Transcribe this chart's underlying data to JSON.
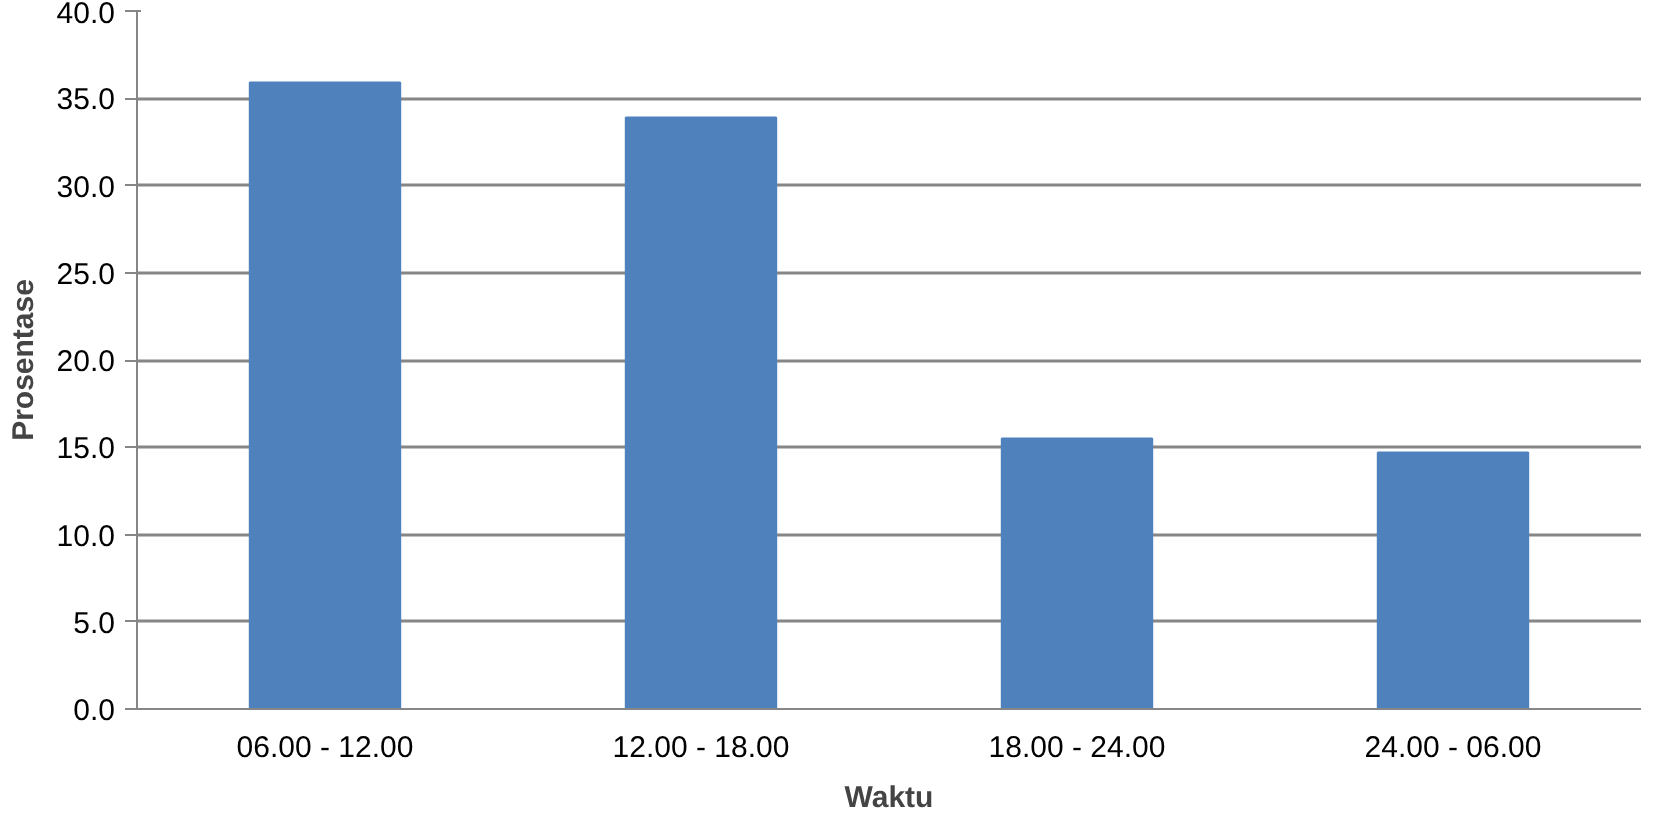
{
  "chart_data": {
    "type": "bar",
    "xlabel": "Waktu",
    "ylabel": "Prosentase",
    "categories": [
      "06.00 - 12.00",
      "12.00 - 18.00",
      "18.00 - 24.00",
      "24.00 - 06.00"
    ],
    "values": [
      35.9,
      33.9,
      15.5,
      14.7
    ],
    "color": "#4f81bd",
    "ylim": [
      0,
      40
    ],
    "yticks": [
      {
        "value": 0,
        "label": "0.0"
      },
      {
        "value": 5,
        "label": "5.0"
      },
      {
        "value": 10,
        "label": "10.0"
      },
      {
        "value": 15,
        "label": "15.0"
      },
      {
        "value": 20,
        "label": "20.0"
      },
      {
        "value": 25,
        "label": "25.0"
      },
      {
        "value": 30,
        "label": "30.0"
      },
      {
        "value": 35,
        "label": "35.0"
      },
      {
        "value": 40,
        "label": "40.0"
      }
    ],
    "grid": "y"
  }
}
